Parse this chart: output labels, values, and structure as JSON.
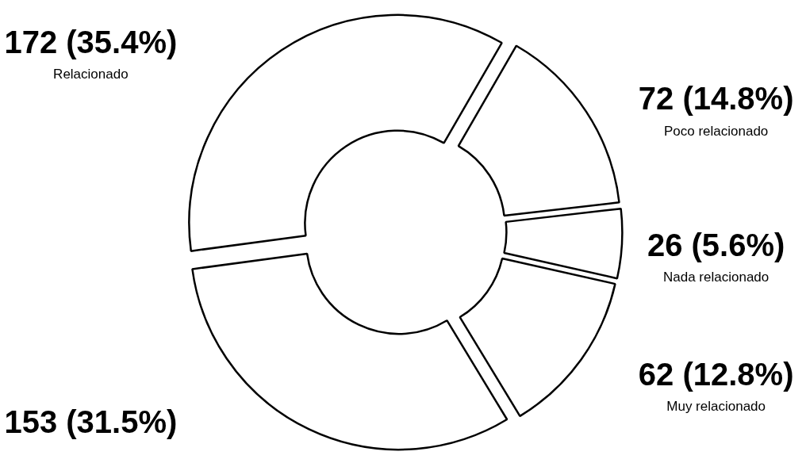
{
  "chart_data": {
    "type": "donut",
    "categories": [
      "Poco relacionado",
      "Nada relacionado",
      "Muy relacionado",
      null,
      "Relacionado"
    ],
    "values": [
      72,
      26,
      62,
      153,
      172
    ],
    "value_labels": [
      "72 (14.8%)",
      "26 (5.6%)",
      "62 (12.8%)",
      "153 (31.5%)",
      "172 (35.4%)"
    ],
    "colors": [
      "#ffffff",
      "#ffffff",
      "#ffffff",
      "#ffffff",
      "#ffffff"
    ]
  }
}
